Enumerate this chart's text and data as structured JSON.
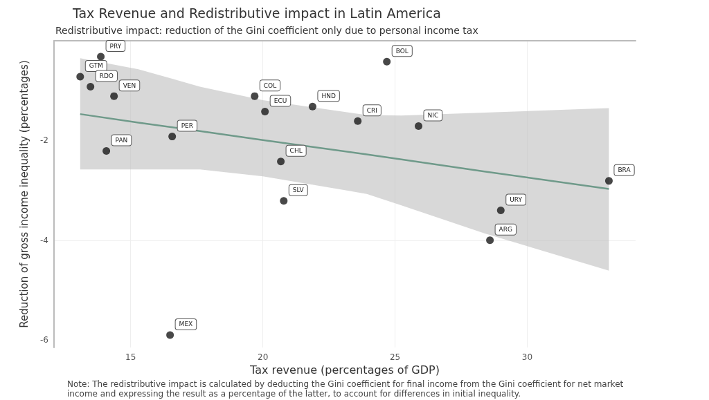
{
  "chart_data": {
    "type": "scatter",
    "title": "Tax Revenue and Redistributive impact in Latin America",
    "subtitle": "Redistributive impact: reduction of the Gini coefficient only due to personal income tax",
    "xlabel": "Tax revenue (percentages of GDP)",
    "ylabel": "Reduction of gross income inequality (percentages)",
    "xlim": [
      12.1,
      34.1
    ],
    "ylim": [
      -6.15,
      0
    ],
    "xticks": [
      15,
      20,
      25,
      30
    ],
    "yticks": [
      -6,
      -4,
      -2
    ],
    "grid": true,
    "series": [
      {
        "marker": "circle",
        "color": "#1a1a1a",
        "x": [
          13.87,
          13.09,
          13.48,
          14.37,
          14.08,
          16.57,
          19.69,
          20.08,
          21.88,
          23.59,
          20.68,
          20.79,
          24.69,
          25.89,
          33.09,
          29.0,
          28.59,
          16.49
        ],
        "values": [
          -0.32,
          -0.72,
          -0.92,
          -1.11,
          -2.21,
          -1.92,
          -1.11,
          -1.42,
          -1.32,
          -1.61,
          -2.42,
          -3.21,
          -0.42,
          -1.71,
          -2.81,
          -3.4,
          -4.0,
          -5.9
        ]
      },
      {
        "type": "line",
        "color": "#6f9a8a",
        "x": [
          13.09,
          15.29,
          17.62,
          20.0,
          23.93,
          25.24,
          28.38,
          33.09
        ],
        "values": [
          -1.47,
          -1.64,
          -1.81,
          -1.99,
          -2.28,
          -2.38,
          -2.62,
          -2.97
        ],
        "lower": [
          -2.58,
          -2.58,
          -2.58,
          -2.72,
          -3.07,
          -3.3,
          -3.86,
          -4.61
        ],
        "upper": [
          -0.35,
          -0.57,
          -0.92,
          -1.19,
          -1.49,
          -1.5,
          -1.44,
          -1.35
        ]
      }
    ],
    "annotations": [
      {
        "text": "PRY",
        "x": 13.87,
        "y": -0.32
      },
      {
        "text": "GTM",
        "x": 13.09,
        "y": -0.72
      },
      {
        "text": "RDO",
        "x": 13.48,
        "y": -0.92
      },
      {
        "text": "VEN",
        "x": 14.37,
        "y": -1.11
      },
      {
        "text": "PAN",
        "x": 14.08,
        "y": -2.21
      },
      {
        "text": "PER",
        "x": 16.57,
        "y": -1.92
      },
      {
        "text": "COL",
        "x": 19.69,
        "y": -1.11
      },
      {
        "text": "ECU",
        "x": 20.08,
        "y": -1.42
      },
      {
        "text": "HND",
        "x": 21.88,
        "y": -1.32
      },
      {
        "text": "CRI",
        "x": 23.59,
        "y": -1.61
      },
      {
        "text": "CHL",
        "x": 20.68,
        "y": -2.42
      },
      {
        "text": "SLV",
        "x": 20.79,
        "y": -3.21
      },
      {
        "text": "BOL",
        "x": 24.69,
        "y": -0.42
      },
      {
        "text": "NIC",
        "x": 25.89,
        "y": -1.71
      },
      {
        "text": "BRA",
        "x": 33.09,
        "y": -2.81
      },
      {
        "text": "URY",
        "x": 29.0,
        "y": -3.4
      },
      {
        "text": "ARG",
        "x": 28.59,
        "y": -4.0
      },
      {
        "text": "MEX",
        "x": 16.49,
        "y": -5.9
      },
      "Note: The redistributive impact is calculated by deducting the Gini coefficient for final income from the Gini coefficient for net market income and expressing the result as a percentage of the latter, to account for differences in initial inequality."
    ]
  }
}
